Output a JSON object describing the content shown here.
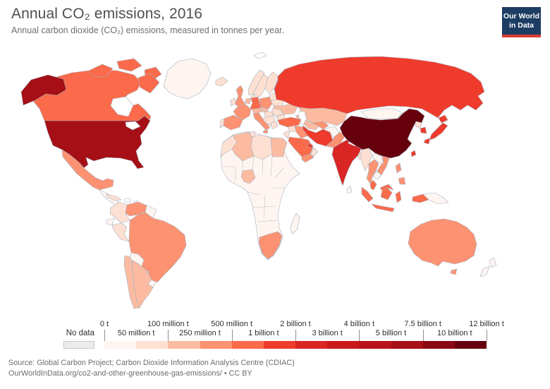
{
  "header": {
    "title": "Annual CO₂ emissions, 2016",
    "subtitle": "Annual carbon dioxide (CO₂) emissions, measured in tonnes per year."
  },
  "logo": {
    "line1": "Our World",
    "line2": "in Data",
    "bg": "#1d3d63",
    "accent": "#d93a34"
  },
  "legend": {
    "no_data_label": "No data",
    "no_data_color": "#ececec",
    "boundaries": [
      {
        "label": "0 t",
        "row": "top"
      },
      {
        "label": "50 million t",
        "row": "bottom"
      },
      {
        "label": "100 million t",
        "row": "top"
      },
      {
        "label": "250 million t",
        "row": "bottom"
      },
      {
        "label": "500 million t",
        "row": "top"
      },
      {
        "label": "1 billion t",
        "row": "bottom"
      },
      {
        "label": "2 billion t",
        "row": "top"
      },
      {
        "label": "3 billion t",
        "row": "bottom"
      },
      {
        "label": "4 billion t",
        "row": "top"
      },
      {
        "label": "5 billion t",
        "row": "bottom"
      },
      {
        "label": "7.5 billion t",
        "row": "top"
      },
      {
        "label": "10 billion t",
        "row": "bottom"
      },
      {
        "label": "12 billion t",
        "row": "top"
      }
    ],
    "bins": [
      {
        "range": "0t-50Mt",
        "color": "#fff5f0"
      },
      {
        "range": "50Mt-100Mt",
        "color": "#fee0d2"
      },
      {
        "range": "100Mt-250Mt",
        "color": "#fcbba1"
      },
      {
        "range": "250Mt-500Mt",
        "color": "#fc9272"
      },
      {
        "range": "500Mt-1Bt",
        "color": "#fb6a4a"
      },
      {
        "range": "1Bt-2Bt",
        "color": "#ef3b2c"
      },
      {
        "range": "2Bt-3Bt",
        "color": "#d92523"
      },
      {
        "range": "3Bt-4Bt",
        "color": "#cb181d"
      },
      {
        "range": "4Bt-5Bt",
        "color": "#b81419"
      },
      {
        "range": "5Bt-7.5Bt",
        "color": "#a50f15"
      },
      {
        "range": "7.5Bt-10Bt",
        "color": "#8a0812"
      },
      {
        "range": "10Bt-12Bt",
        "color": "#67000d"
      }
    ]
  },
  "footer": {
    "line1": "Source: Global Carbon Project; Carbon Dioxide Information Analysis Centre (CDIAC)",
    "line2": "OurWorldInData.org/co2-and-other-greenhouse-gas-emissions/ • CC BY"
  },
  "chart_data": {
    "type": "choropleth",
    "title": "Annual CO₂ emissions, 2016",
    "unit": "tonnes of CO₂ per year",
    "legend_position": "bottom",
    "bin_edges": [
      "0 t",
      "50 million t",
      "100 million t",
      "250 million t",
      "500 million t",
      "1 billion t",
      "2 billion t",
      "3 billion t",
      "4 billion t",
      "5 billion t",
      "7.5 billion t",
      "10 billion t",
      "12 billion t"
    ],
    "bin_colors": [
      "#fff5f0",
      "#fee0d2",
      "#fcbba1",
      "#fc9272",
      "#fb6a4a",
      "#ef3b2c",
      "#d92523",
      "#cb181d",
      "#b81419",
      "#a50f15",
      "#8a0812",
      "#67000d"
    ],
    "countries": {
      "greenland": 0,
      "canada": 4,
      "usa": 9,
      "mexico": 3,
      "central-america": 0,
      "cuba": 1,
      "caribbean": -1,
      "trinidad": 5,
      "colombia": 1,
      "venezuela": 3,
      "guyanas": 0,
      "ecuador": 0,
      "peru": 1,
      "brazil": 3,
      "bolivia": 0,
      "paraguay": 0,
      "uruguay": 0,
      "chile": 2,
      "argentina": 2,
      "iceland": 1,
      "uk": 3,
      "ireland": 1,
      "norway": 1,
      "sweden": 1,
      "finland": 1,
      "denmark": 1,
      "baltics": 1,
      "belarus": 1,
      "poland": 3,
      "germany": 4,
      "benelux": 2,
      "france": 3,
      "spain": 3,
      "portugal": 1,
      "italy": 3,
      "switzerland-austria": 2,
      "czech-slovakia": 2,
      "hungary": 1,
      "balkans": 1,
      "romania": 1,
      "bulgaria": 1,
      "greece": 1,
      "ukraine": 2,
      "russia": 5,
      "kazakhstan": 2,
      "caucasus": 2,
      "turkmenistan": 2,
      "uzbekistan": 3,
      "turkey": 4,
      "syria": 1,
      "iraq": 3,
      "jordan-israel": 1,
      "saudi-arabia": 4,
      "yemen": 3,
      "oman": 1,
      "gulf-states": 5,
      "iran": 5,
      "afghanistan": 0,
      "pakistan": 3,
      "india": 6,
      "nepal": 0,
      "bangladesh": 1,
      "sri-lanka": 0,
      "china": 11,
      "mongolia": 0,
      "taiwan": 5,
      "north-korea": 1,
      "south-korea": 5,
      "japan": 5,
      "myanmar": 1,
      "thailand": 3,
      "laos": 0,
      "vietnam": 3,
      "cambodia": 0,
      "malaysia": 4,
      "indonesia": 4,
      "philippines": 3,
      "png": 0,
      "australia": 3,
      "new-zealand": 0,
      "morocco": 1,
      "algeria": 2,
      "tunisia": 1,
      "libya": 1,
      "egypt": 2,
      "africa": 0,
      "nigeria": 2,
      "south-africa": 3,
      "madagascar": 0,
      "svalbard": -1
    }
  }
}
